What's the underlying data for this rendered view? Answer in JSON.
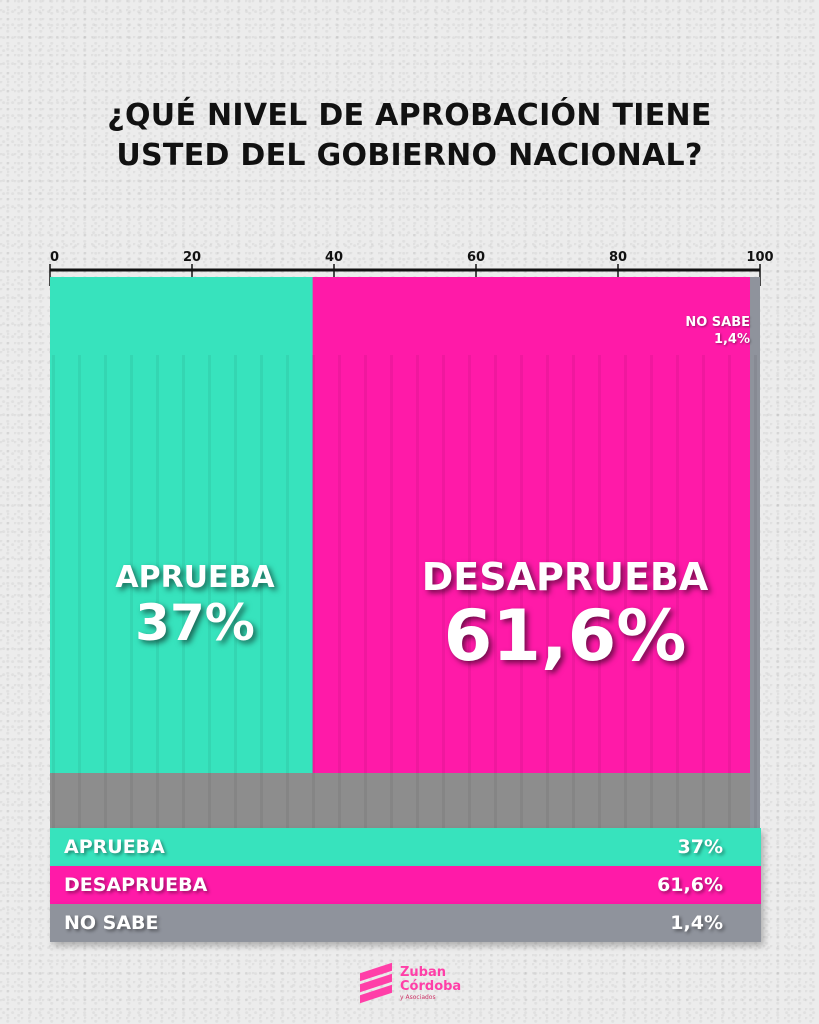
{
  "title": {
    "line1": "¿QUÉ NIVEL DE APROBACIÓN TIENE",
    "line2": "USTED DEL GOBIERNO NACIONAL?"
  },
  "chart_data": {
    "type": "bar",
    "orientation": "horizontal-stacked",
    "xlim": [
      0,
      100
    ],
    "x_ticks": [
      "0",
      "20",
      "40",
      "60",
      "80",
      "100"
    ],
    "categories": [
      "APRUEBA",
      "DESAPRUEBA",
      "NO SABE"
    ],
    "values": [
      37,
      61.6,
      1.4
    ],
    "value_labels": [
      "37%",
      "61,6%",
      "1,4%"
    ],
    "colors": [
      "#37e3bd",
      "#ff1aa8",
      "#8f939c"
    ]
  },
  "labels": {
    "aprueba_name": "APRUEBA",
    "aprueba_value": "37%",
    "desaprueba_name": "DESAPRUEBA",
    "desaprueba_value": "61,6%",
    "nosabe_name": "NO SABE",
    "nosabe_value": "1,4%"
  },
  "legend": [
    {
      "label": "APRUEBA",
      "value": "37%",
      "color": "#37e3bd"
    },
    {
      "label": "DESAPRUEBA",
      "value": "61,6%",
      "color": "#ff1aa8"
    },
    {
      "label": "NO SABE",
      "value": "1,4%",
      "color": "#8f939c"
    }
  ],
  "logo": {
    "line1": "Zuban",
    "line2": "Córdoba",
    "line3": "y Asociados"
  }
}
